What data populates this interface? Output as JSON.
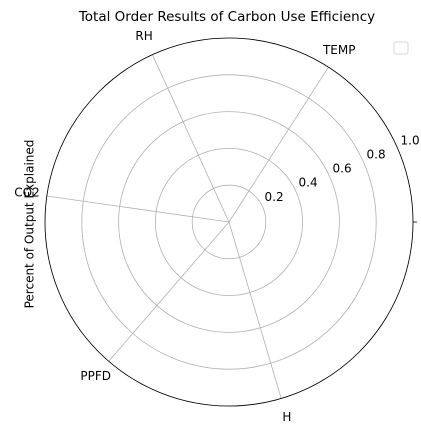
{
  "chart_data": {
    "type": "polar",
    "title": "Total Order Results of Carbon Use Efficiency",
    "ylabel": "Percent of Output Explained",
    "xticks": [
      {
        "value": 1,
        "label": "TEMP"
      },
      {
        "value": 2,
        "label": "RH"
      },
      {
        "value": 3,
        "label": "CO2"
      },
      {
        "value": 4,
        "label": "PPFD"
      },
      {
        "value": 5,
        "label": "H"
      }
    ],
    "ylim": [
      0,
      1
    ],
    "yticks": [
      {
        "value": 0.2,
        "label": "0.2"
      },
      {
        "value": 0.4,
        "label": "0.4"
      },
      {
        "value": 0.6,
        "label": "0.6"
      },
      {
        "value": 0.8,
        "label": "0.8"
      },
      {
        "value": 1,
        "label": "1.0"
      }
    ],
    "grid": true,
    "legend": "upper right"
  }
}
